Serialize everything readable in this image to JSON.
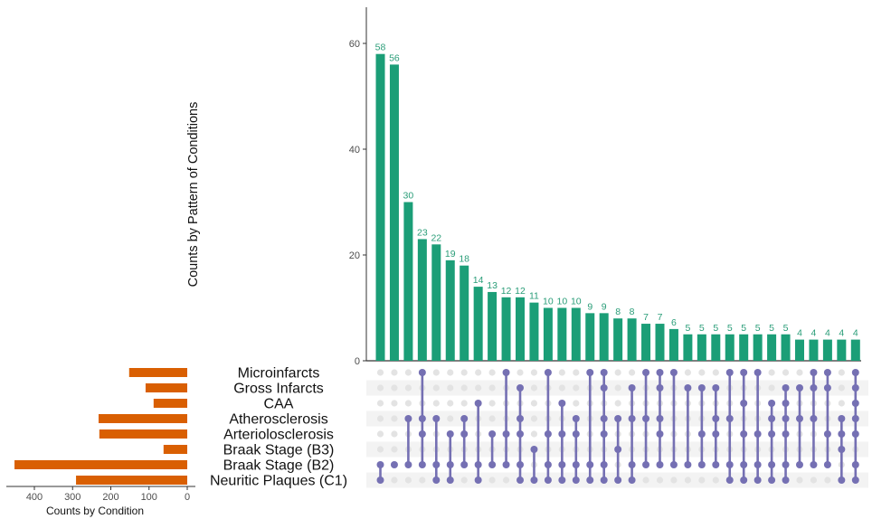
{
  "chart_data": {
    "type": "bar",
    "subtype": "upset",
    "title": "",
    "intersection_axis": {
      "ylabel": "Counts by Pattern of Conditions",
      "ylim": [
        0,
        67
      ],
      "ticks": [
        0,
        20,
        40,
        60
      ]
    },
    "set_axis": {
      "xlabel": "Counts by Condition",
      "xlim": [
        0,
        470
      ],
      "ticks": [
        400,
        300,
        200,
        100,
        0
      ],
      "direction": "reversed"
    },
    "sets": [
      {
        "name": "Microinfarcts",
        "size": 152
      },
      {
        "name": "Gross Infarcts",
        "size": 109
      },
      {
        "name": "CAA",
        "size": 88
      },
      {
        "name": "Atherosclerosis",
        "size": 232
      },
      {
        "name": "Arteriolosclerosis",
        "size": 230
      },
      {
        "name": "Braak Stage (B3)",
        "size": 62
      },
      {
        "name": "Braak Stage (B2)",
        "size": 452
      },
      {
        "name": "Neuritic Plaques (C1)",
        "size": 291
      }
    ],
    "intersections": [
      {
        "value": 58,
        "sets": [
          6,
          7
        ]
      },
      {
        "value": 56,
        "sets": [
          6
        ]
      },
      {
        "value": 30,
        "sets": [
          3,
          6
        ]
      },
      {
        "value": 23,
        "sets": [
          0,
          3,
          4,
          6
        ]
      },
      {
        "value": 22,
        "sets": [
          3,
          6,
          7
        ]
      },
      {
        "value": 19,
        "sets": [
          4,
          6,
          7
        ]
      },
      {
        "value": 18,
        "sets": [
          3,
          4,
          6
        ]
      },
      {
        "value": 14,
        "sets": [
          2,
          6,
          7
        ]
      },
      {
        "value": 13,
        "sets": [
          4,
          6
        ]
      },
      {
        "value": 12,
        "sets": [
          0,
          4,
          6
        ]
      },
      {
        "value": 12,
        "sets": [
          1,
          3,
          4,
          6,
          7
        ]
      },
      {
        "value": 11,
        "sets": [
          5,
          7
        ]
      },
      {
        "value": 10,
        "sets": [
          0,
          4,
          6,
          7
        ]
      },
      {
        "value": 10,
        "sets": [
          2,
          4,
          6,
          7
        ]
      },
      {
        "value": 10,
        "sets": [
          3,
          4,
          6,
          7
        ]
      },
      {
        "value": 9,
        "sets": [
          0,
          6,
          7
        ]
      },
      {
        "value": 9,
        "sets": [
          0,
          1,
          3,
          4,
          6,
          7
        ]
      },
      {
        "value": 8,
        "sets": [
          3,
          5,
          7
        ]
      },
      {
        "value": 8,
        "sets": [
          1,
          3,
          6,
          7
        ]
      },
      {
        "value": 7,
        "sets": [
          0,
          3,
          6
        ]
      },
      {
        "value": 7,
        "sets": [
          0,
          1,
          3,
          4,
          6
        ]
      },
      {
        "value": 6,
        "sets": [
          0,
          6
        ]
      },
      {
        "value": 5,
        "sets": [
          1,
          6
        ]
      },
      {
        "value": 5,
        "sets": [
          1,
          4,
          6
        ]
      },
      {
        "value": 5,
        "sets": [
          1,
          3,
          4,
          6
        ]
      },
      {
        "value": 5,
        "sets": [
          0,
          3,
          6,
          7
        ]
      },
      {
        "value": 5,
        "sets": [
          0,
          2,
          4,
          6,
          7
        ]
      },
      {
        "value": 5,
        "sets": [
          0,
          4,
          6,
          7
        ]
      },
      {
        "value": 5,
        "sets": [
          2,
          3,
          4,
          6,
          7
        ]
      },
      {
        "value": 5,
        "sets": [
          1,
          2,
          3,
          4,
          6,
          7
        ]
      },
      {
        "value": 4,
        "sets": [
          1,
          3,
          6
        ]
      },
      {
        "value": 4,
        "sets": [
          0,
          1,
          3,
          6
        ]
      },
      {
        "value": 4,
        "sets": [
          0,
          1,
          4,
          6
        ]
      },
      {
        "value": 4,
        "sets": [
          3,
          4,
          5,
          7
        ]
      },
      {
        "value": 4,
        "sets": [
          0,
          1,
          2,
          3,
          4,
          6,
          7
        ]
      }
    ],
    "colors": {
      "intersection_bar": "#1b9e77",
      "intersection_label": "#2a9d78",
      "set_bar": "#d95f02",
      "matrix_dot_active": "#7570b3",
      "matrix_dot_inactive": "#e3e3e3",
      "matrix_stripe": "#f3f3f3"
    },
    "grid": false
  }
}
